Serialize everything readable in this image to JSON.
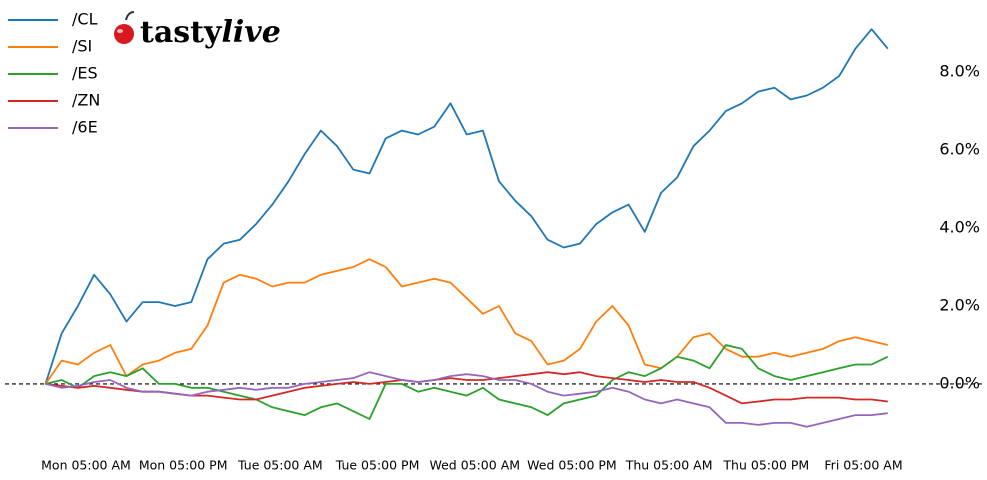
{
  "brand": [
    "tasty",
    "live"
  ],
  "chart_data": {
    "type": "line",
    "x": [
      0,
      2,
      4,
      6,
      8,
      10,
      12,
      14,
      16,
      18,
      20,
      22,
      24,
      26,
      28,
      30,
      32,
      34,
      36,
      38,
      40,
      42,
      44,
      46,
      48,
      50,
      52,
      54,
      56,
      58,
      60,
      62,
      64,
      66,
      68,
      70,
      72,
      74,
      76,
      78,
      80,
      82,
      84,
      86,
      88,
      90,
      92,
      94,
      96,
      98,
      100,
      102,
      104
    ],
    "xlim": [
      -5,
      116
    ],
    "xticks": [
      {
        "value": 5,
        "label": "Mon 05:00 AM"
      },
      {
        "value": 17,
        "label": "Mon 05:00 PM"
      },
      {
        "value": 29,
        "label": "Tue 05:00 AM"
      },
      {
        "value": 41,
        "label": "Tue 05:00 PM"
      },
      {
        "value": 53,
        "label": "Wed 05:00 AM"
      },
      {
        "value": 65,
        "label": "Wed 05:00 PM"
      },
      {
        "value": 77,
        "label": "Thu 05:00 AM"
      },
      {
        "value": 89,
        "label": "Thu 05:00 PM"
      },
      {
        "value": 101,
        "label": "Fri 05:00 AM"
      }
    ],
    "ylim": [
      -1.9,
      9.85
    ],
    "yticks": [
      {
        "value": 0,
        "label": "0.0%"
      },
      {
        "value": 2,
        "label": "2.0%"
      },
      {
        "value": 4,
        "label": "4.0%"
      },
      {
        "value": 6,
        "label": "6.0%"
      },
      {
        "value": 8,
        "label": "8.0%"
      }
    ],
    "hline": 0,
    "legend": "upper left",
    "series": [
      {
        "name": "/CL",
        "color": "#1f77b4",
        "values": [
          0,
          1.3,
          2.0,
          2.8,
          2.3,
          1.6,
          2.1,
          2.1,
          2.0,
          2.1,
          3.2,
          3.6,
          3.7,
          4.1,
          4.6,
          5.2,
          5.9,
          6.5,
          6.1,
          5.5,
          5.4,
          6.3,
          6.5,
          6.4,
          6.6,
          7.2,
          6.4,
          6.5,
          5.2,
          4.7,
          4.3,
          3.7,
          3.5,
          3.6,
          4.1,
          4.4,
          4.6,
          3.9,
          4.9,
          5.3,
          6.1,
          6.5,
          7.0,
          7.2,
          7.5,
          7.6,
          7.3,
          7.4,
          7.6,
          7.9,
          8.6,
          9.1,
          8.6
        ]
      },
      {
        "name": "/SI",
        "color": "#ff7f0e",
        "values": [
          0,
          0.6,
          0.5,
          0.8,
          1.0,
          0.2,
          0.5,
          0.6,
          0.8,
          0.9,
          1.5,
          2.6,
          2.8,
          2.7,
          2.5,
          2.6,
          2.6,
          2.8,
          2.9,
          3.0,
          3.2,
          3.0,
          2.5,
          2.6,
          2.7,
          2.6,
          2.2,
          1.8,
          2.0,
          1.3,
          1.1,
          0.5,
          0.6,
          0.9,
          1.6,
          2.0,
          1.5,
          0.5,
          0.4,
          0.7,
          1.2,
          1.3,
          0.9,
          0.7,
          0.7,
          0.8,
          0.7,
          0.8,
          0.9,
          1.1,
          1.2,
          1.1,
          1.0
        ]
      },
      {
        "name": "/ES",
        "color": "#2ca02c",
        "values": [
          0,
          0.1,
          -0.1,
          0.2,
          0.3,
          0.2,
          0.4,
          0.0,
          0.0,
          -0.1,
          -0.1,
          -0.2,
          -0.3,
          -0.4,
          -0.6,
          -0.7,
          -0.8,
          -0.6,
          -0.5,
          -0.7,
          -0.9,
          0.0,
          0.0,
          -0.2,
          -0.1,
          -0.2,
          -0.3,
          -0.1,
          -0.4,
          -0.5,
          -0.6,
          -0.8,
          -0.5,
          -0.4,
          -0.3,
          0.1,
          0.3,
          0.2,
          0.4,
          0.7,
          0.6,
          0.4,
          1.0,
          0.9,
          0.4,
          0.2,
          0.1,
          0.2,
          0.3,
          0.4,
          0.5,
          0.5,
          0.7
        ]
      },
      {
        "name": "/ZN",
        "color": "#d62728",
        "values": [
          0,
          -0.05,
          -0.1,
          -0.05,
          -0.1,
          -0.15,
          -0.2,
          -0.2,
          -0.25,
          -0.3,
          -0.3,
          -0.35,
          -0.4,
          -0.4,
          -0.3,
          -0.2,
          -0.1,
          -0.05,
          0,
          0.05,
          0.0,
          0.05,
          0.1,
          0.05,
          0.1,
          0.15,
          0.1,
          0.1,
          0.15,
          0.2,
          0.25,
          0.3,
          0.25,
          0.3,
          0.2,
          0.15,
          0.1,
          0.05,
          0.1,
          0.05,
          0.05,
          -0.1,
          -0.3,
          -0.5,
          -0.45,
          -0.4,
          -0.4,
          -0.35,
          -0.35,
          -0.35,
          -0.4,
          -0.4,
          -0.45
        ]
      },
      {
        "name": "/6E",
        "color": "#9467bd",
        "values": [
          0,
          -0.1,
          -0.05,
          0.05,
          0.1,
          -0.1,
          -0.2,
          -0.2,
          -0.25,
          -0.3,
          -0.2,
          -0.15,
          -0.1,
          -0.15,
          -0.1,
          -0.1,
          0.0,
          0.05,
          0.1,
          0.15,
          0.3,
          0.2,
          0.1,
          0.05,
          0.1,
          0.2,
          0.25,
          0.2,
          0.1,
          0.1,
          0.0,
          -0.2,
          -0.3,
          -0.25,
          -0.2,
          -0.1,
          -0.2,
          -0.4,
          -0.5,
          -0.4,
          -0.5,
          -0.6,
          -1.0,
          -1.0,
          -1.05,
          -1.0,
          -1.0,
          -1.1,
          -1.0,
          -0.9,
          -0.8,
          -0.8,
          -0.75
        ]
      }
    ]
  }
}
